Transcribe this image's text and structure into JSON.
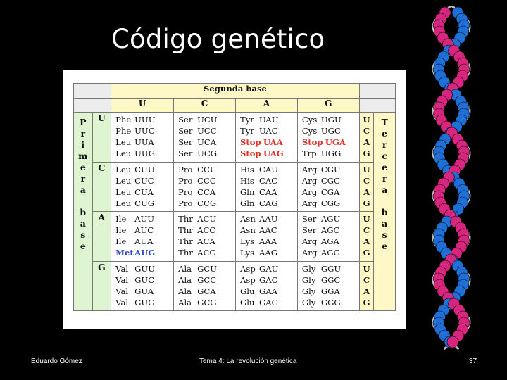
{
  "slide": {
    "title": "Código genético",
    "footer_left": "Eduardo Gómez",
    "footer_center": "Tema 4: La revolución genética",
    "page_number": "37"
  },
  "table": {
    "second_base_header": "Segunda base",
    "second_bases": [
      "U",
      "C",
      "A",
      "G"
    ],
    "first_base_label": [
      "P",
      "r",
      "i",
      "m",
      "e",
      "r",
      "a",
      "",
      "b",
      "a",
      "s",
      "e"
    ],
    "third_base_label": [
      "T",
      "e",
      "r",
      "c",
      "e",
      "r",
      "a",
      "",
      "b",
      "a",
      "s",
      "e"
    ],
    "rows": [
      {
        "first": "U",
        "third": [
          "U",
          "C",
          "A",
          "G"
        ],
        "cells": [
          [
            [
              "Phe",
              "UUU"
            ],
            [
              "Phe",
              "UUC"
            ],
            [
              "Leu",
              "UUA"
            ],
            [
              "Leu",
              "UUG"
            ]
          ],
          [
            [
              "Ser",
              "UCU"
            ],
            [
              "Ser",
              "UCC"
            ],
            [
              "Ser",
              "UCA"
            ],
            [
              "Ser",
              "UCG"
            ]
          ],
          [
            [
              "Tyr",
              "UAU"
            ],
            [
              "Tyr",
              "UAC"
            ],
            [
              "Stop",
              "UAA"
            ],
            [
              "Stop",
              "UAG"
            ]
          ],
          [
            [
              "Cys",
              "UGU"
            ],
            [
              "Cys",
              "UGC"
            ],
            [
              "Stop",
              "UGA"
            ],
            [
              "Trp",
              "UGG"
            ]
          ]
        ]
      },
      {
        "first": "C",
        "third": [
          "U",
          "C",
          "A",
          "G"
        ],
        "cells": [
          [
            [
              "Leu",
              "CUU"
            ],
            [
              "Leu",
              "CUC"
            ],
            [
              "Leu",
              "CUA"
            ],
            [
              "Leu",
              "CUG"
            ]
          ],
          [
            [
              "Pro",
              "CCU"
            ],
            [
              "Pro",
              "CCC"
            ],
            [
              "Pro",
              "CCA"
            ],
            [
              "Pro",
              "CCG"
            ]
          ],
          [
            [
              "His",
              "CAU"
            ],
            [
              "His",
              "CAC"
            ],
            [
              "Gln",
              "CAA"
            ],
            [
              "Gln",
              "CAG"
            ]
          ],
          [
            [
              "Arg",
              "CGU"
            ],
            [
              "Arg",
              "CGC"
            ],
            [
              "Arg",
              "CGA"
            ],
            [
              "Arg",
              "CGG"
            ]
          ]
        ]
      },
      {
        "first": "A",
        "third": [
          "U",
          "C",
          "A",
          "G"
        ],
        "cells": [
          [
            [
              "Ile",
              "AUU"
            ],
            [
              "Ile",
              "AUC"
            ],
            [
              "Ile",
              "AUA"
            ],
            [
              "Met",
              "AUG"
            ]
          ],
          [
            [
              "Thr",
              "ACU"
            ],
            [
              "Thr",
              "ACC"
            ],
            [
              "Thr",
              "ACA"
            ],
            [
              "Thr",
              "ACG"
            ]
          ],
          [
            [
              "Asn",
              "AAU"
            ],
            [
              "Asn",
              "AAC"
            ],
            [
              "Lys",
              "AAA"
            ],
            [
              "Lys",
              "AAG"
            ]
          ],
          [
            [
              "Ser",
              "AGU"
            ],
            [
              "Ser",
              "AGC"
            ],
            [
              "Arg",
              "AGA"
            ],
            [
              "Arg",
              "AGG"
            ]
          ]
        ]
      },
      {
        "first": "G",
        "third": [
          "U",
          "C",
          "A",
          "G"
        ],
        "cells": [
          [
            [
              "Val",
              "GUU"
            ],
            [
              "Val",
              "GUC"
            ],
            [
              "Val",
              "GUA"
            ],
            [
              "Val",
              "GUG"
            ]
          ],
          [
            [
              "Ala",
              "GCU"
            ],
            [
              "Ala",
              "GCC"
            ],
            [
              "Ala",
              "GCA"
            ],
            [
              "Ala",
              "GCG"
            ]
          ],
          [
            [
              "Asp",
              "GAU"
            ],
            [
              "Asp",
              "GAC"
            ],
            [
              "Glu",
              "GAA"
            ],
            [
              "Glu",
              "GAG"
            ]
          ],
          [
            [
              "Gly",
              "GGU"
            ],
            [
              "Gly",
              "GGC"
            ],
            [
              "Gly",
              "GGA"
            ],
            [
              "Gly",
              "GGG"
            ]
          ]
        ]
      }
    ],
    "highlight_colors": {
      "stop": "#e2312a",
      "start": "#2f46c6"
    }
  },
  "dna_image": {
    "icon": "dna-helix-icon",
    "colors": [
      "#1f6fd6",
      "#d8267f",
      "#bdbdbd"
    ]
  }
}
